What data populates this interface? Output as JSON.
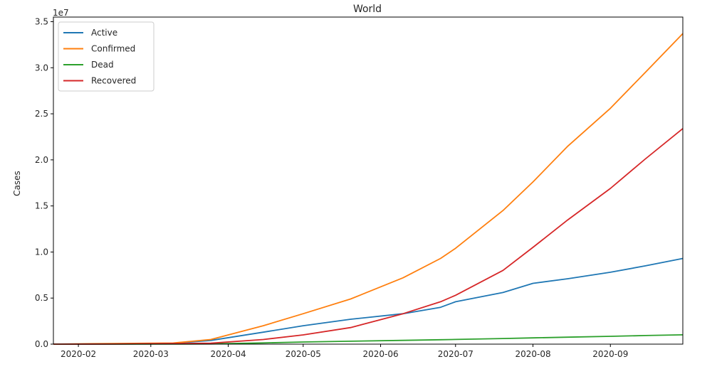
{
  "chart_data": {
    "type": "line",
    "title": "World",
    "ylabel": "Cases",
    "xlabel": "",
    "y_multiplier": "1e7",
    "xlim": [
      "2020-01-22",
      "2020-09-30"
    ],
    "ylim": [
      0,
      35500000
    ],
    "x_ticks": [
      "2020-02-01",
      "2020-03-01",
      "2020-04-01",
      "2020-05-01",
      "2020-06-01",
      "2020-07-01",
      "2020-08-01",
      "2020-09-01"
    ],
    "x_tick_labels": [
      "2020-02",
      "2020-03",
      "2020-04",
      "2020-05",
      "2020-06",
      "2020-07",
      "2020-08",
      "2020-09"
    ],
    "y_ticks": [
      0,
      5000000,
      10000000,
      15000000,
      20000000,
      25000000,
      30000000,
      35000000
    ],
    "y_tick_labels": [
      "0.0",
      "0.5",
      "1.0",
      "1.5",
      "2.0",
      "2.5",
      "3.0",
      "3.5"
    ],
    "legend_position": "top-left",
    "grid": false,
    "x": [
      "2020-01-22",
      "2020-02-15",
      "2020-03-10",
      "2020-03-25",
      "2020-04-15",
      "2020-05-01",
      "2020-05-20",
      "2020-06-10",
      "2020-06-25",
      "2020-07-01",
      "2020-07-20",
      "2020-08-01",
      "2020-08-15",
      "2020-09-01",
      "2020-09-15",
      "2020-09-30"
    ],
    "series": [
      {
        "name": "Active",
        "color": "#1f77b4",
        "values": [
          500,
          30000,
          90000,
          400000,
          1300000,
          2000000,
          2700000,
          3300000,
          4000000,
          4600000,
          5600000,
          6600000,
          7100000,
          7800000,
          8500000,
          9300000
        ]
      },
      {
        "name": "Confirmed",
        "color": "#ff7f0e",
        "values": [
          560,
          70000,
          120000,
          500000,
          2000000,
          3300000,
          4900000,
          7200000,
          9300000,
          10400000,
          14500000,
          17600000,
          21500000,
          25600000,
          29500000,
          33700000
        ]
      },
      {
        "name": "Dead",
        "color": "#2ca02c",
        "values": [
          17,
          1600,
          4200,
          21000,
          130000,
          230000,
          320000,
          410000,
          480000,
          510000,
          610000,
          680000,
          760000,
          850000,
          930000,
          1010000
        ]
      },
      {
        "name": "Recovered",
        "color": "#d62728",
        "values": [
          28,
          10000,
          65000,
          100000,
          500000,
          1000000,
          1800000,
          3300000,
          4600000,
          5300000,
          8000000,
          10500000,
          13500000,
          16900000,
          20100000,
          23400000
        ]
      }
    ]
  }
}
